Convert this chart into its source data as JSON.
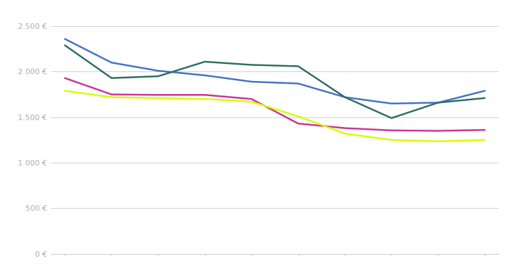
{
  "x": [
    0,
    1,
    2,
    3,
    4,
    5,
    6,
    7,
    8,
    9
  ],
  "blue_line": [
    2360,
    2100,
    2010,
    1960,
    1890,
    1870,
    1720,
    1650,
    1660,
    1790
  ],
  "teal_line": [
    2290,
    1930,
    1950,
    2110,
    2075,
    2060,
    1720,
    1490,
    1660,
    1710
  ],
  "pink_line": [
    1930,
    1750,
    1745,
    1745,
    1700,
    1430,
    1380,
    1355,
    1350,
    1360
  ],
  "yellow_line": [
    1790,
    1720,
    1710,
    1700,
    1670,
    1510,
    1320,
    1250,
    1235,
    1250
  ],
  "blue_color": "#4472c4",
  "teal_color": "#2d6e65",
  "pink_color": "#cc3399",
  "yellow_color": "#d4ff00",
  "background_color": "#ffffff",
  "grid_color": "#d0d0d0",
  "ylim": [
    0,
    2700
  ],
  "yticks": [
    0,
    500,
    1000,
    1500,
    2000,
    2500
  ],
  "ytick_labels": [
    "0 €",
    "500 €",
    "1.000 €",
    "1.500 €",
    "2.000 €",
    "2.500 €"
  ],
  "line_width": 1.8,
  "tick_label_color": "#aaaaaa",
  "tick_label_fontsize": 8
}
